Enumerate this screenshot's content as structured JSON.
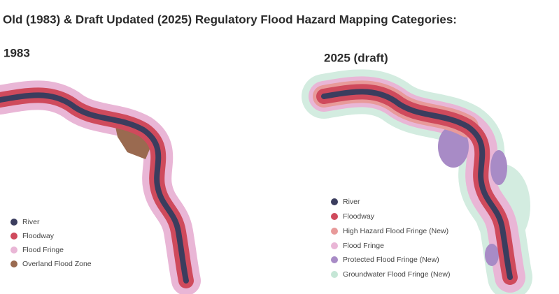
{
  "header": {
    "title": "Old (1983) & Draft Updated (2025) Regulatory Flood Hazard Mapping Categories:"
  },
  "panels": [
    {
      "label": "1983",
      "legend": [
        "River",
        "Floodway",
        "Flood Fringe",
        "Overland Flood Zone"
      ]
    },
    {
      "label": "2025 (draft)",
      "legend": [
        "River",
        "Floodway",
        "High Hazard Flood Fringe (New)",
        "Flood Fringe",
        "Protected Flood Fringe (New)",
        "Groundwater Flood Fringe (New)"
      ]
    }
  ]
}
